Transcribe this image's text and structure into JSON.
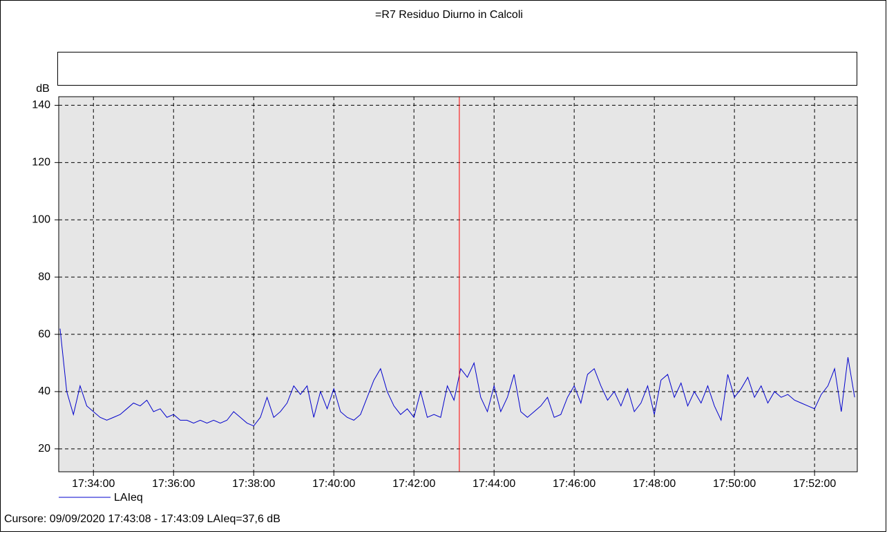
{
  "chart_data": {
    "type": "line",
    "title": "=R7 Residuo Diurno in Calcoli",
    "ylabel": "dB",
    "cursor_text": "Cursore: 09/09/2020 17:43:08 - 17:43:09  LAIeq=37,6 dB",
    "cursor": 63788,
    "cursor_color": "#ff0000",
    "grid": true,
    "xlim": [
      63188,
      64384
    ],
    "xticks": [
      {
        "value": 63240,
        "label": "17:34:00"
      },
      {
        "value": 63360,
        "label": "17:36:00"
      },
      {
        "value": 63480,
        "label": "17:38:00"
      },
      {
        "value": 63600,
        "label": "17:40:00"
      },
      {
        "value": 63720,
        "label": "17:42:00"
      },
      {
        "value": 63840,
        "label": "17:44:00"
      },
      {
        "value": 63960,
        "label": "17:46:00"
      },
      {
        "value": 64080,
        "label": "17:48:00"
      },
      {
        "value": 64200,
        "label": "17:50:00"
      },
      {
        "value": 64320,
        "label": "17:52:00"
      }
    ],
    "ylim": [
      12,
      143
    ],
    "yticks": [
      20,
      40,
      60,
      80,
      100,
      120,
      140
    ],
    "x": [
      63190,
      63200,
      63210,
      63220,
      63230,
      63240,
      63250,
      63260,
      63270,
      63280,
      63290,
      63300,
      63310,
      63320,
      63330,
      63340,
      63350,
      63360,
      63370,
      63380,
      63390,
      63400,
      63410,
      63420,
      63430,
      63440,
      63450,
      63460,
      63470,
      63480,
      63490,
      63500,
      63510,
      63520,
      63530,
      63540,
      63550,
      63560,
      63570,
      63580,
      63590,
      63600,
      63610,
      63620,
      63630,
      63640,
      63650,
      63660,
      63670,
      63680,
      63690,
      63700,
      63710,
      63720,
      63730,
      63740,
      63750,
      63760,
      63770,
      63780,
      63790,
      63800,
      63810,
      63820,
      63830,
      63840,
      63850,
      63860,
      63870,
      63880,
      63890,
      63900,
      63910,
      63920,
      63930,
      63940,
      63950,
      63960,
      63970,
      63980,
      63990,
      64000,
      64010,
      64020,
      64030,
      64040,
      64050,
      64060,
      64070,
      64080,
      64090,
      64100,
      64110,
      64120,
      64130,
      64140,
      64150,
      64160,
      64170,
      64180,
      64190,
      64200,
      64210,
      64220,
      64230,
      64240,
      64250,
      64260,
      64270,
      64280,
      64290,
      64300,
      64310,
      64320,
      64330,
      64340,
      64350,
      64360,
      64370,
      64380
    ],
    "series": [
      {
        "name": "LAIeq",
        "color": "#0000cc",
        "values": [
          62,
          40,
          32,
          42,
          35,
          33,
          31,
          30,
          31,
          32,
          34,
          36,
          35,
          37,
          33,
          34,
          31,
          32,
          30,
          30,
          29,
          30,
          29,
          30,
          29,
          30,
          33,
          31,
          29,
          28,
          31,
          38,
          31,
          33,
          36,
          42,
          39,
          42,
          31,
          40,
          34,
          41,
          33,
          31,
          30,
          32,
          38,
          44,
          48,
          40,
          35,
          32,
          34,
          31,
          40,
          31,
          32,
          31,
          42,
          37,
          48,
          45,
          50,
          38,
          33,
          42,
          33,
          38,
          46,
          33,
          31,
          33,
          35,
          38,
          31,
          32,
          38,
          42,
          36,
          46,
          48,
          42,
          37,
          40,
          35,
          41,
          33,
          36,
          42,
          32,
          44,
          46,
          38,
          43,
          35,
          40,
          36,
          42,
          35,
          30,
          46,
          38,
          41,
          45,
          38,
          42,
          36,
          40,
          38,
          39,
          37,
          36,
          35,
          34,
          39,
          42,
          48,
          33,
          52,
          38
        ]
      }
    ]
  }
}
